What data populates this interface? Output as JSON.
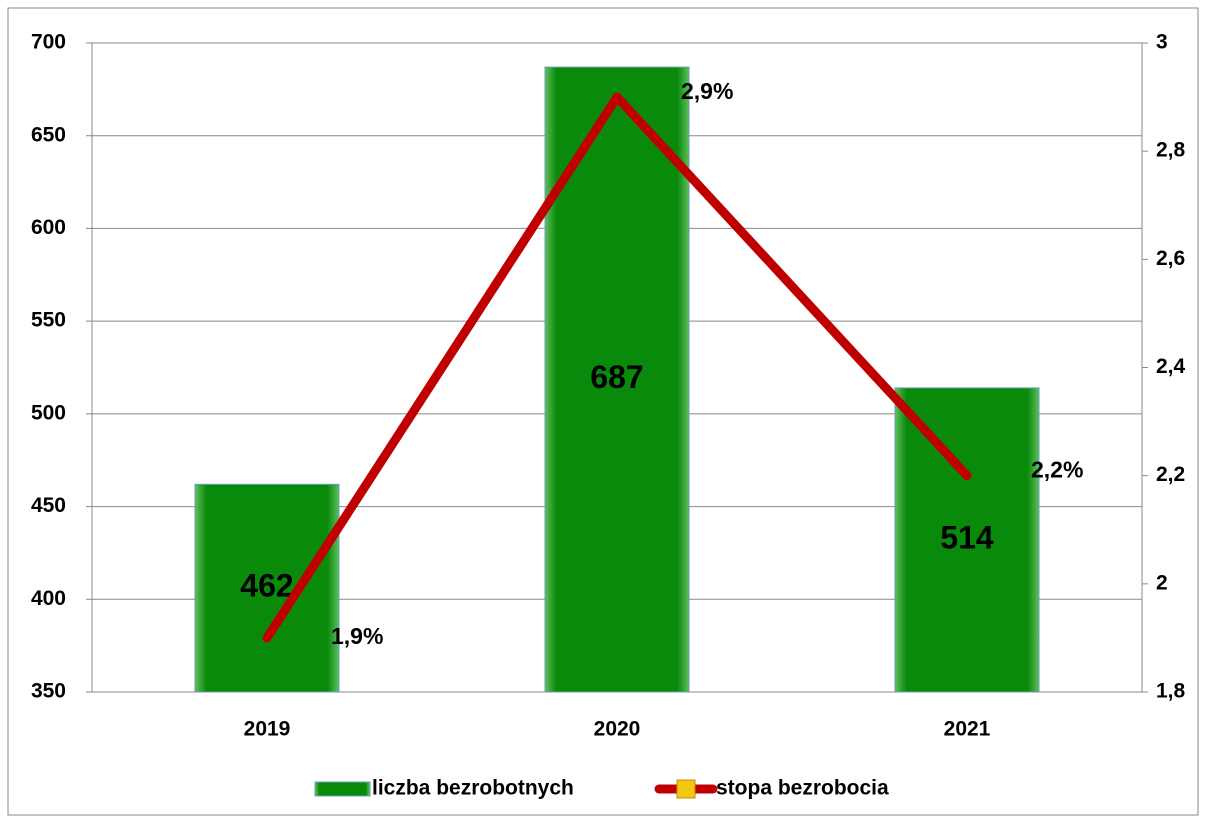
{
  "chart_data": {
    "type": "bar",
    "categories": [
      "2019",
      "2020",
      "2021"
    ],
    "series": [
      {
        "name": "liczba bezrobotnych",
        "type": "bar",
        "color": "#0a8a0a",
        "values": [
          462,
          687,
          514
        ]
      },
      {
        "name": "stopa bezrobocia",
        "type": "line",
        "axis": "y2",
        "color": "#c00000",
        "values": [
          1.9,
          2.9,
          2.2
        ],
        "value_labels": [
          "1,9%",
          "2,9%",
          "2,2%"
        ]
      }
    ],
    "ylim": [
      350,
      700
    ],
    "yticks": [
      350,
      400,
      450,
      500,
      550,
      600,
      650,
      700
    ],
    "y2lim": [
      1.8,
      3
    ],
    "y2ticks": [
      {
        "value": 1.8,
        "label": "1,8"
      },
      2,
      {
        "value": 2.2,
        "label": "2,2"
      },
      {
        "value": 2.4,
        "label": "2,4"
      },
      {
        "value": 2.6,
        "label": "2,6"
      },
      {
        "value": 2.8,
        "label": "2,8"
      },
      3
    ],
    "grid": true,
    "legend": "bottom"
  }
}
